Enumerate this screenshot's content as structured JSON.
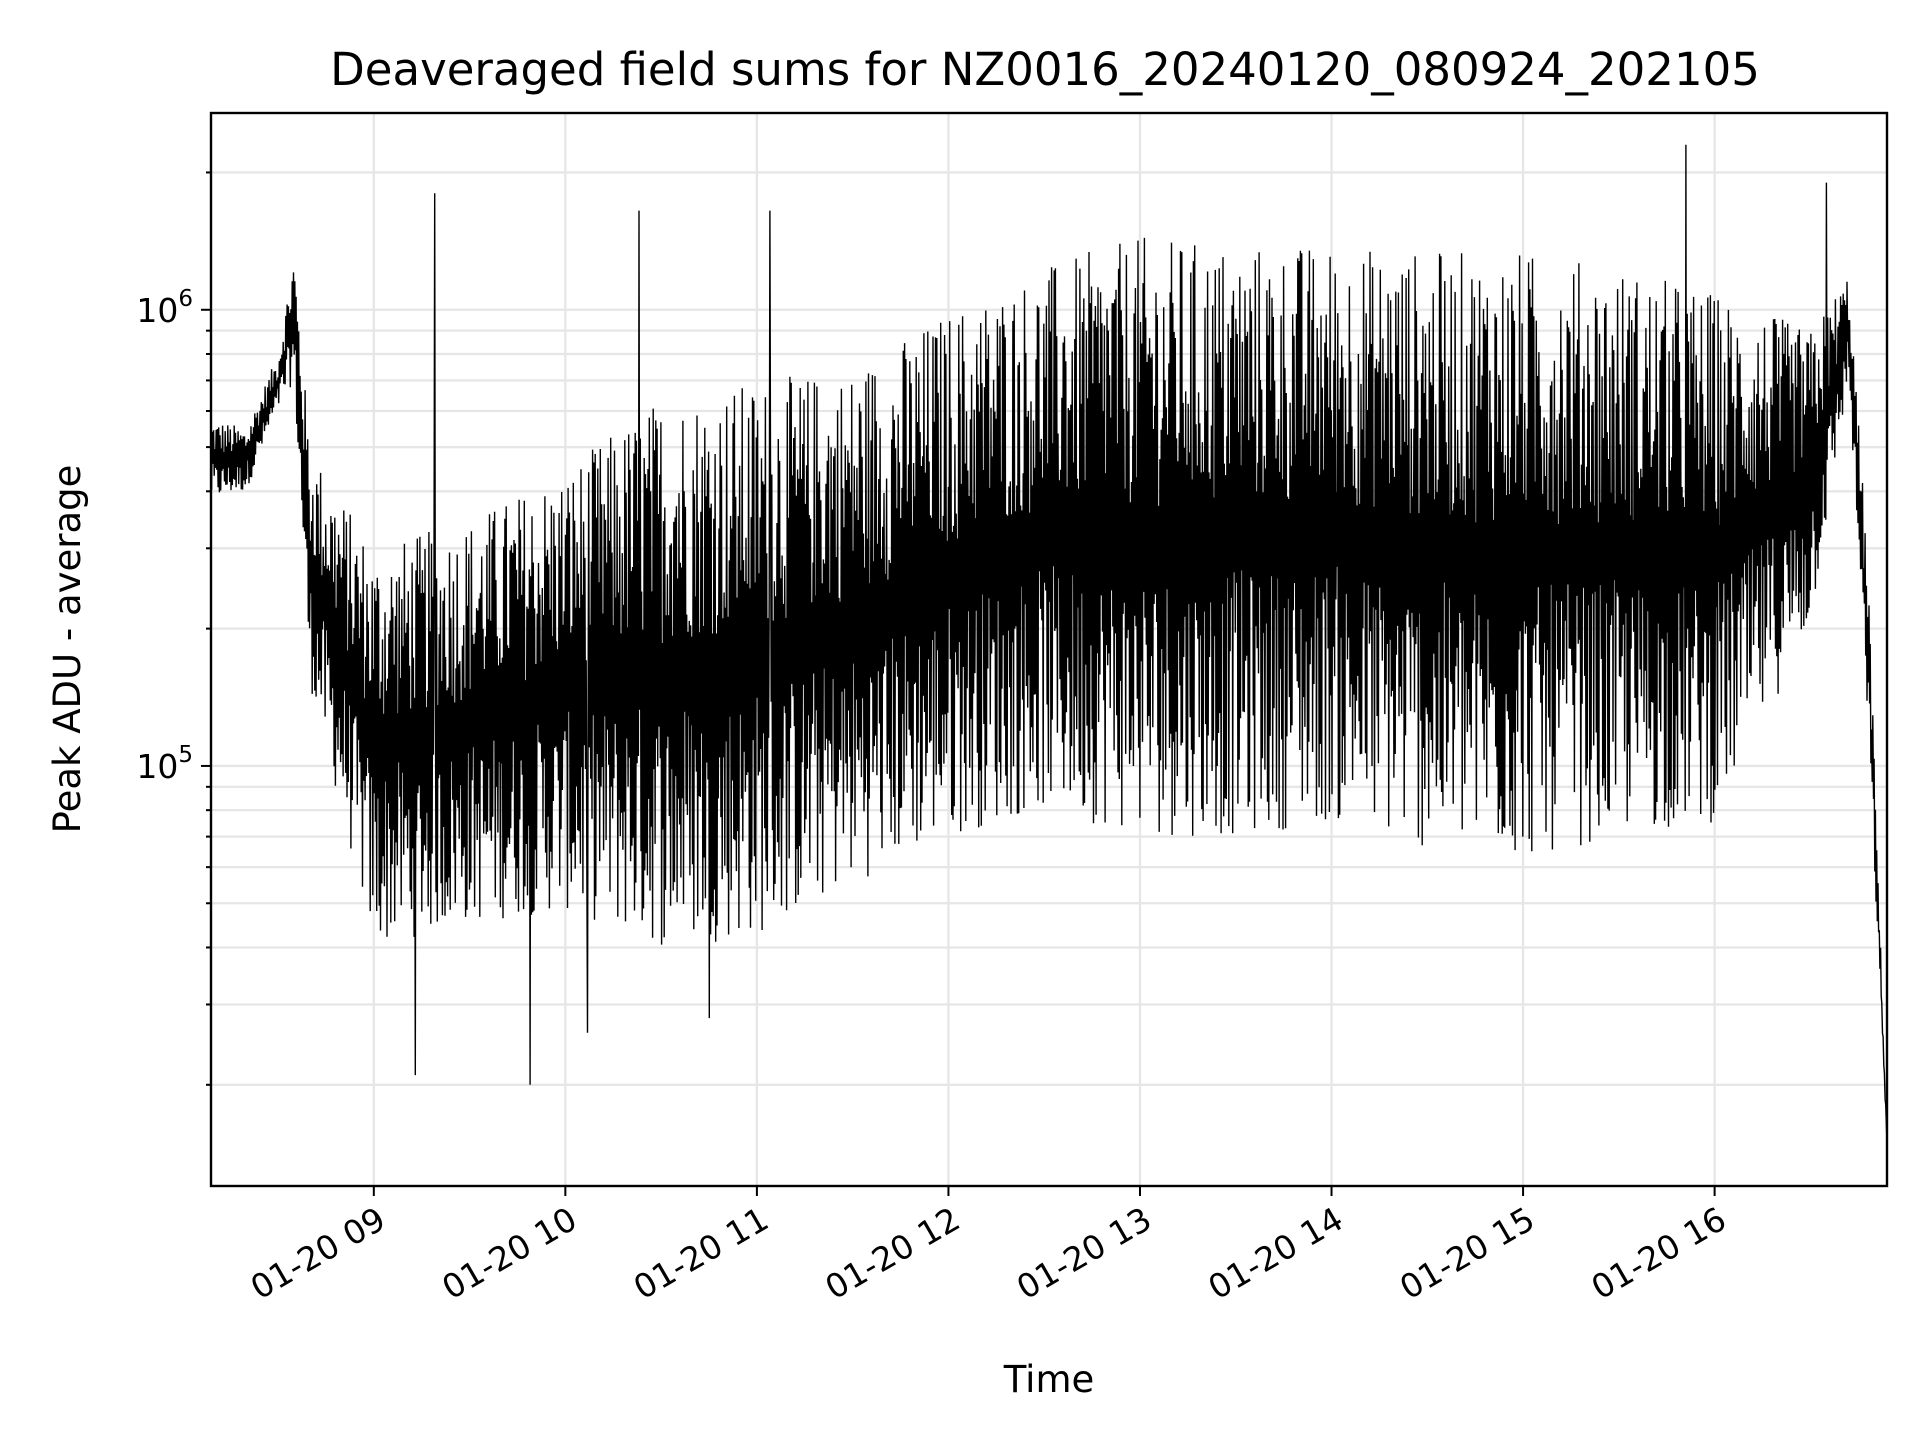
{
  "chart_data": {
    "type": "line",
    "title": "Deaveraged field sums for NZ0016_20240120_080924_202105",
    "xlabel": "Time",
    "ylabel": "Peak ADU - average",
    "y_scale": "log",
    "grid": true,
    "grid_minor_y": true,
    "line_color": "#000000",
    "xlim": [
      "01-20 08:09",
      "01-20 16:54"
    ],
    "ylim": [
      12000,
      2700000
    ],
    "x_ticks": [
      {
        "time": "01-20 09:00",
        "label": "01-20 09"
      },
      {
        "time": "01-20 10:00",
        "label": "01-20 10"
      },
      {
        "time": "01-20 11:00",
        "label": "01-20 11"
      },
      {
        "time": "01-20 12:00",
        "label": "01-20 12"
      },
      {
        "time": "01-20 13:00",
        "label": "01-20 13"
      },
      {
        "time": "01-20 14:00",
        "label": "01-20 14"
      },
      {
        "time": "01-20 15:00",
        "label": "01-20 15"
      },
      {
        "time": "01-20 16:00",
        "label": "01-20 16"
      }
    ],
    "y_ticks": [
      {
        "value": 100000,
        "base": "10",
        "exp": "5"
      },
      {
        "value": 1000000,
        "base": "10",
        "exp": "6"
      }
    ],
    "series": [
      {
        "envelope_upper": [
          [
            "01-20 08:09",
            580000
          ],
          [
            "01-20 08:20",
            550000
          ],
          [
            "01-20 08:30",
            800000
          ],
          [
            "01-20 08:35",
            1350000
          ],
          [
            "01-20 08:40",
            500000
          ],
          [
            "01-20 09:00",
            300000
          ],
          [
            "01-20 09:30",
            350000
          ],
          [
            "01-20 10:00",
            450000
          ],
          [
            "01-20 10:30",
            650000
          ],
          [
            "01-20 11:00",
            700000
          ],
          [
            "01-20 11:30",
            750000
          ],
          [
            "01-20 12:00",
            1000000
          ],
          [
            "01-20 12:30",
            1250000
          ],
          [
            "01-20 13:00",
            1450000
          ],
          [
            "01-20 13:30",
            1400000
          ],
          [
            "01-20 14:00",
            1400000
          ],
          [
            "01-20 14:30",
            1350000
          ],
          [
            "01-20 15:00",
            1350000
          ],
          [
            "01-20 15:30",
            1250000
          ],
          [
            "01-20 16:00",
            1100000
          ],
          [
            "01-20 16:30",
            900000
          ],
          [
            "01-20 16:42",
            1200000
          ],
          [
            "01-20 16:48",
            280000
          ],
          [
            "01-20 16:54",
            15000
          ]
        ],
        "envelope_lower": [
          [
            "01-20 08:09",
            380000
          ],
          [
            "01-20 08:20",
            400000
          ],
          [
            "01-20 08:30",
            600000
          ],
          [
            "01-20 08:35",
            700000
          ],
          [
            "01-20 08:40",
            150000
          ],
          [
            "01-20 09:00",
            40000
          ],
          [
            "01-20 09:30",
            45000
          ],
          [
            "01-20 10:00",
            48000
          ],
          [
            "01-20 10:30",
            40000
          ],
          [
            "01-20 11:00",
            42000
          ],
          [
            "01-20 11:30",
            55000
          ],
          [
            "01-20 12:00",
            70000
          ],
          [
            "01-20 12:30",
            80000
          ],
          [
            "01-20 13:00",
            70000
          ],
          [
            "01-20 13:30",
            70000
          ],
          [
            "01-20 14:00",
            75000
          ],
          [
            "01-20 14:30",
            65000
          ],
          [
            "01-20 15:00",
            62000
          ],
          [
            "01-20 15:30",
            70000
          ],
          [
            "01-20 16:00",
            75000
          ],
          [
            "01-20 16:30",
            200000
          ],
          [
            "01-20 16:42",
            700000
          ],
          [
            "01-20 16:48",
            120000
          ],
          [
            "01-20 16:54",
            15000
          ]
        ],
        "spikes": [
          [
            "01-20 09:19",
            1800000
          ],
          [
            "01-20 10:23",
            1650000
          ],
          [
            "01-20 11:04",
            1650000
          ],
          [
            "01-20 15:51",
            2300000
          ],
          [
            "01-20 16:35",
            1900000
          ],
          [
            "01-20 09:49",
            20000
          ],
          [
            "01-20 09:13",
            21000
          ],
          [
            "01-20 10:07",
            26000
          ],
          [
            "01-20 10:45",
            28000
          ]
        ]
      }
    ]
  }
}
